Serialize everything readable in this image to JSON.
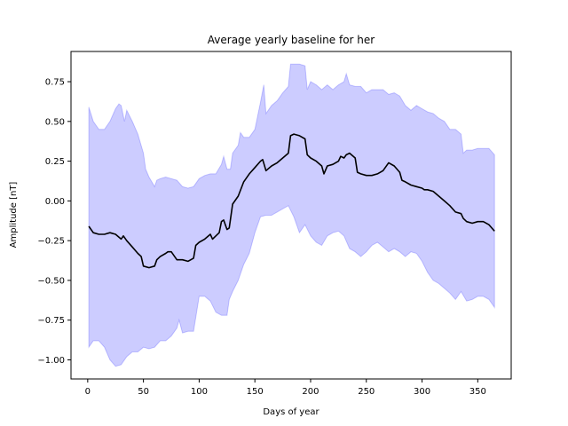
{
  "chart_data": {
    "type": "area",
    "title": "Average yearly baseline for her",
    "xlabel": "Days of year",
    "ylabel": "Amplitude [nT]",
    "xlim": [
      -15,
      380
    ],
    "ylim": [
      -1.12,
      0.94
    ],
    "xticks": [
      0,
      50,
      100,
      150,
      200,
      250,
      300,
      350
    ],
    "yticks": [
      -1.0,
      -0.75,
      -0.5,
      -0.25,
      0.0,
      0.25,
      0.5,
      0.75
    ],
    "ytick_labels": [
      "−1.00",
      "−0.75",
      "−0.50",
      "−0.25",
      "0.00",
      "0.25",
      "0.50",
      "0.75"
    ],
    "grid": false,
    "colors": {
      "mean": "#000000",
      "band": "#0000ff"
    },
    "series": [
      {
        "role": "mean",
        "x": [
          1,
          5,
          10,
          15,
          20,
          25,
          30,
          32,
          35,
          40,
          45,
          48,
          50,
          55,
          60,
          62,
          65,
          70,
          72,
          75,
          80,
          85,
          90,
          95,
          97,
          100,
          105,
          110,
          112,
          115,
          118,
          120,
          122,
          125,
          127,
          130,
          135,
          140,
          145,
          150,
          155,
          157,
          160,
          165,
          170,
          175,
          180,
          182,
          185,
          190,
          195,
          197,
          200,
          205,
          210,
          212,
          215,
          220,
          225,
          227,
          230,
          232,
          235,
          240,
          242,
          245,
          250,
          255,
          260,
          265,
          270,
          275,
          280,
          282,
          285,
          290,
          295,
          300,
          302,
          305,
          310,
          315,
          320,
          325,
          330,
          335,
          337,
          340,
          345,
          350,
          355,
          360,
          365
        ],
        "y": [
          -0.16,
          -0.2,
          -0.21,
          -0.21,
          -0.2,
          -0.21,
          -0.24,
          -0.22,
          -0.25,
          -0.29,
          -0.33,
          -0.35,
          -0.41,
          -0.42,
          -0.41,
          -0.37,
          -0.35,
          -0.33,
          -0.32,
          -0.32,
          -0.37,
          -0.37,
          -0.38,
          -0.36,
          -0.28,
          -0.26,
          -0.24,
          -0.21,
          -0.24,
          -0.22,
          -0.2,
          -0.13,
          -0.12,
          -0.18,
          -0.17,
          -0.02,
          0.03,
          0.12,
          0.17,
          0.21,
          0.25,
          0.26,
          0.19,
          0.22,
          0.24,
          0.27,
          0.3,
          0.41,
          0.42,
          0.41,
          0.39,
          0.29,
          0.27,
          0.25,
          0.22,
          0.17,
          0.22,
          0.23,
          0.25,
          0.28,
          0.27,
          0.29,
          0.3,
          0.27,
          0.18,
          0.17,
          0.16,
          0.16,
          0.17,
          0.19,
          0.24,
          0.22,
          0.18,
          0.13,
          0.12,
          0.1,
          0.09,
          0.08,
          0.07,
          0.07,
          0.06,
          0.03,
          0.0,
          -0.03,
          -0.07,
          -0.08,
          -0.11,
          -0.13,
          -0.14,
          -0.13,
          -0.13,
          -0.15,
          -0.19
        ]
      },
      {
        "role": "upper",
        "x": [
          1,
          5,
          10,
          15,
          20,
          25,
          28,
          30,
          33,
          35,
          40,
          45,
          50,
          52,
          55,
          60,
          62,
          65,
          70,
          75,
          80,
          85,
          90,
          95,
          100,
          105,
          110,
          115,
          120,
          122,
          125,
          128,
          130,
          135,
          137,
          140,
          145,
          150,
          155,
          158,
          160,
          165,
          170,
          175,
          180,
          182,
          185,
          190,
          195,
          197,
          200,
          205,
          210,
          215,
          220,
          225,
          230,
          232,
          235,
          240,
          245,
          250,
          255,
          260,
          265,
          270,
          275,
          280,
          285,
          290,
          295,
          300,
          305,
          310,
          315,
          320,
          325,
          330,
          335,
          337,
          340,
          345,
          350,
          355,
          360,
          365
        ],
        "y": [
          0.59,
          0.5,
          0.45,
          0.45,
          0.5,
          0.58,
          0.61,
          0.6,
          0.5,
          0.57,
          0.5,
          0.42,
          0.3,
          0.2,
          0.15,
          0.09,
          0.13,
          0.14,
          0.15,
          0.14,
          0.13,
          0.09,
          0.08,
          0.09,
          0.14,
          0.16,
          0.17,
          0.17,
          0.23,
          0.28,
          0.2,
          0.2,
          0.3,
          0.35,
          0.43,
          0.4,
          0.4,
          0.45,
          0.62,
          0.73,
          0.55,
          0.6,
          0.63,
          0.68,
          0.72,
          0.86,
          0.86,
          0.86,
          0.85,
          0.7,
          0.75,
          0.73,
          0.7,
          0.73,
          0.7,
          0.73,
          0.75,
          0.8,
          0.73,
          0.72,
          0.72,
          0.68,
          0.7,
          0.7,
          0.7,
          0.67,
          0.68,
          0.66,
          0.6,
          0.57,
          0.6,
          0.58,
          0.56,
          0.55,
          0.52,
          0.5,
          0.45,
          0.45,
          0.42,
          0.3,
          0.32,
          0.32,
          0.33,
          0.33,
          0.33,
          0.29
        ]
      },
      {
        "role": "lower",
        "x": [
          1,
          5,
          10,
          15,
          20,
          25,
          30,
          35,
          40,
          45,
          50,
          55,
          60,
          65,
          70,
          75,
          80,
          82,
          85,
          90,
          95,
          100,
          105,
          110,
          115,
          120,
          125,
          127,
          130,
          135,
          140,
          145,
          150,
          155,
          160,
          165,
          170,
          175,
          180,
          185,
          190,
          195,
          200,
          205,
          210,
          215,
          220,
          225,
          230,
          235,
          240,
          245,
          250,
          255,
          260,
          265,
          270,
          275,
          280,
          285,
          290,
          295,
          300,
          305,
          310,
          315,
          320,
          325,
          330,
          335,
          340,
          345,
          350,
          355,
          360,
          365
        ],
        "y": [
          -0.92,
          -0.88,
          -0.88,
          -0.92,
          -1.0,
          -1.04,
          -1.03,
          -0.98,
          -0.95,
          -0.95,
          -0.92,
          -0.93,
          -0.92,
          -0.88,
          -0.88,
          -0.85,
          -0.8,
          -0.75,
          -0.83,
          -0.82,
          -0.82,
          -0.6,
          -0.6,
          -0.63,
          -0.7,
          -0.72,
          -0.72,
          -0.62,
          -0.57,
          -0.5,
          -0.4,
          -0.33,
          -0.2,
          -0.1,
          -0.09,
          -0.09,
          -0.07,
          -0.05,
          -0.03,
          -0.1,
          -0.2,
          -0.15,
          -0.22,
          -0.26,
          -0.28,
          -0.22,
          -0.2,
          -0.19,
          -0.22,
          -0.3,
          -0.32,
          -0.35,
          -0.32,
          -0.28,
          -0.26,
          -0.29,
          -0.32,
          -0.3,
          -0.32,
          -0.35,
          -0.32,
          -0.33,
          -0.38,
          -0.45,
          -0.5,
          -0.52,
          -0.55,
          -0.58,
          -0.62,
          -0.57,
          -0.63,
          -0.62,
          -0.6,
          -0.6,
          -0.62,
          -0.67
        ]
      }
    ]
  }
}
